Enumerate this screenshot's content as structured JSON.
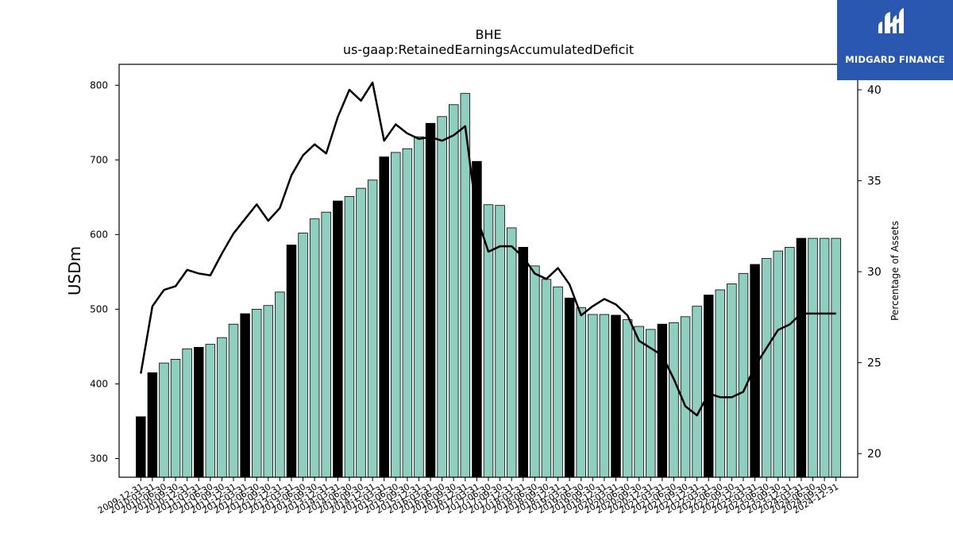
{
  "chart_data": {
    "type": "bar",
    "title": "BHE",
    "subtitle": "us-gaap:RetainedEarningsAccumulatedDeficit",
    "ylabel": "USDm",
    "y2label": "Percentage of Assets",
    "ylim": [
      275,
      828
    ],
    "y2lim": [
      18.7,
      41.4
    ],
    "yticks": [
      300,
      400,
      500,
      600,
      700,
      800
    ],
    "y2ticks": [
      20,
      25,
      30,
      35,
      40
    ],
    "colors": {
      "bar": "#8ecfc0",
      "bar_highlight": "#000000",
      "line": "#000000"
    },
    "categories": [
      "2009-12-31",
      "2010-03-31",
      "2010-06-30",
      "2010-09-30",
      "2010-12-31",
      "2011-03-31",
      "2011-06-30",
      "2011-09-30",
      "2011-12-31",
      "2012-03-31",
      "2012-06-30",
      "2012-09-30",
      "2012-12-31",
      "2013-03-31",
      "2013-06-30",
      "2013-09-30",
      "2013-12-31",
      "2014-03-31",
      "2014-06-30",
      "2014-09-30",
      "2014-12-31",
      "2015-03-31",
      "2015-06-30",
      "2015-09-30",
      "2015-12-31",
      "2016-03-31",
      "2016-06-30",
      "2016-09-30",
      "2016-12-31",
      "2017-03-31",
      "2017-06-30",
      "2017-09-30",
      "2017-12-31",
      "2018-03-31",
      "2018-06-30",
      "2018-09-30",
      "2018-12-31",
      "2019-03-31",
      "2019-06-30",
      "2019-09-30",
      "2019-12-31",
      "2020-03-31",
      "2020-06-30",
      "2020-09-30",
      "2020-12-31",
      "2021-03-31",
      "2021-06-30",
      "2021-09-30",
      "2021-12-31",
      "2022-03-31",
      "2022-06-30",
      "2022-09-30",
      "2022-12-31",
      "2023-03-31",
      "2023-06-30",
      "2023-09-30",
      "2023-12-31",
      "2024-03-31",
      "2024-06-30",
      "2024-09-30",
      "2024-12-31"
    ],
    "visible_tick_labels": [
      "2009-12-31",
      "2010-03-31",
      "2010-06-30",
      "2010-09-30",
      "2010-12-31",
      "2011-03-31",
      "2011-06-30",
      "2011-09-30",
      "2011-12-31",
      "2012-03-31",
      "2012-06-30",
      "2012-09-30",
      "2012-12-31",
      "2013-03-31",
      "2013-06-30",
      "2013-09-30",
      "2013-12-31",
      "2014-03-31",
      "2014-06-30",
      "2014-09-30",
      "2014-12-31",
      "2015-03-31",
      "2015-06-30",
      "2015-09-30",
      "2015-12-31",
      "2016-03-31",
      "2016-06-30",
      "2016-09-30",
      "2016-12-31",
      "2017-03-31",
      "2017-06-30",
      "2017-09-30",
      "2017-12-31",
      "2018-03-31",
      "2018-06-30",
      "2018-09-30",
      "2018-12-31",
      "2019-03-31",
      "2019-06-30",
      "2019-09-30",
      "2019-12-31",
      "2020-03-31",
      "2020-06-30",
      "2020-09-30",
      "2020-12-31",
      "2021-03-31",
      "2021-06-30",
      "2021-09-30",
      "2021-12-31",
      "2022-03-31",
      "2022-06-30",
      "2022-09-30",
      "2022-12-31",
      "2023-03-31",
      "2023-06-30",
      "2023-09-30",
      "2023-12-31",
      "2024-03-31",
      "2024-06-30",
      "2024-09-30",
      "2024-12-31"
    ],
    "series": [
      {
        "type": "bar",
        "axis": "left",
        "values": [
          356,
          415,
          428,
          433,
          447,
          449,
          453,
          462,
          480,
          494,
          500,
          505,
          523,
          586,
          602,
          621,
          630,
          645,
          651,
          662,
          673,
          704,
          710,
          715,
          731,
          749,
          758,
          774,
          789,
          698,
          640,
          639,
          609,
          583,
          558,
          540,
          530,
          515,
          502,
          493,
          493,
          492,
          486,
          477,
          473,
          480,
          482,
          490,
          504,
          519,
          526,
          534,
          548,
          560,
          568,
          578,
          583,
          595,
          595,
          595,
          595
        ],
        "highlight": [
          true,
          true,
          false,
          false,
          false,
          true,
          false,
          false,
          false,
          true,
          false,
          false,
          false,
          true,
          false,
          false,
          false,
          true,
          false,
          false,
          false,
          true,
          false,
          false,
          false,
          true,
          false,
          false,
          false,
          true,
          false,
          false,
          false,
          true,
          false,
          false,
          false,
          true,
          false,
          false,
          false,
          true,
          false,
          false,
          false,
          true,
          false,
          false,
          false,
          true,
          false,
          false,
          false,
          true,
          false,
          false,
          false,
          true,
          false,
          false,
          false
        ]
      },
      {
        "type": "line",
        "axis": "right",
        "values": [
          24.4,
          28.1,
          29.0,
          29.2,
          30.1,
          29.9,
          29.8,
          31.0,
          32.1,
          32.9,
          33.7,
          32.8,
          33.5,
          35.3,
          36.4,
          37.0,
          36.5,
          38.5,
          40.0,
          39.4,
          40.4,
          37.2,
          38.1,
          37.6,
          37.3,
          37.4,
          37.2,
          37.5,
          38.0,
          33.0,
          31.1,
          31.4,
          31.4,
          30.8,
          29.9,
          29.6,
          30.2,
          29.3,
          27.6,
          28.1,
          28.5,
          28.2,
          27.6,
          26.2,
          25.8,
          25.4,
          24.1,
          22.6,
          22.1,
          23.3,
          23.1,
          23.1,
          23.4,
          24.8,
          25.8,
          26.8,
          27.1,
          27.7,
          27.7,
          27.7,
          27.7
        ]
      }
    ]
  },
  "logo": {
    "text": "MIDGARD FINANCE"
  }
}
